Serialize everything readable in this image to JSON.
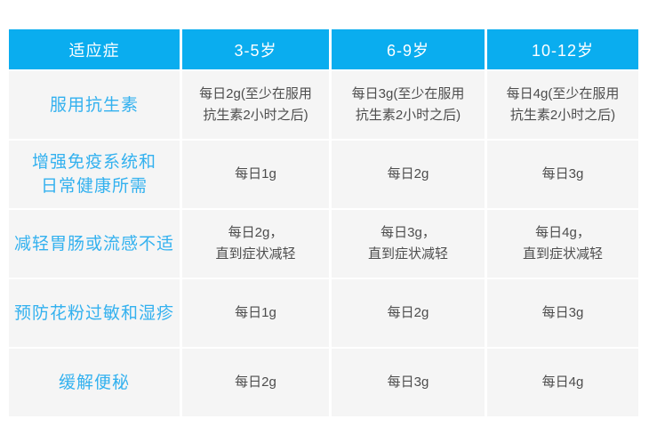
{
  "colors": {
    "header_bg": "#0AADEF",
    "header_text": "#FFFFFF",
    "label_text": "#33B1EF",
    "cell_bg": "#F5F5F5",
    "data_text": "#4D4D4D",
    "page_bg": "#FFFFFF"
  },
  "table": {
    "header": [
      "适应症",
      "3-5岁",
      "6-9岁",
      "10-12岁"
    ],
    "rows": [
      {
        "label": "服用抗生素",
        "values": [
          "每日2g(至少在服用\n抗生素2小时之后)",
          "每日3g(至少在服用\n抗生素2小时之后)",
          "每日4g(至少在服用\n抗生素2小时之后)"
        ]
      },
      {
        "label": "增强免疫系统和\n日常健康所需",
        "values": [
          "每日1g",
          "每日2g",
          "每日3g"
        ]
      },
      {
        "label": "减轻胃肠或流感不适",
        "values": [
          "每日2g，\n直到症状减轻",
          "每日3g，\n直到症状减轻",
          "每日4g，\n直到症状减轻"
        ]
      },
      {
        "label": "预防花粉过敏和湿疹",
        "values": [
          "每日1g",
          "每日2g",
          "每日3g"
        ]
      },
      {
        "label": "缓解便秘",
        "values": [
          "每日2g",
          "每日3g",
          "每日4g"
        ]
      }
    ]
  },
  "chart_data": {
    "type": "table",
    "title": "",
    "columns": [
      "适应症",
      "3-5岁",
      "6-9岁",
      "10-12岁"
    ],
    "rows": [
      [
        "服用抗生素",
        "每日2g(至少在服用抗生素2小时之后)",
        "每日3g(至少在服用抗生素2小时之后)",
        "每日4g(至少在服用抗生素2小时之后)"
      ],
      [
        "增强免疫系统和日常健康所需",
        "每日1g",
        "每日2g",
        "每日3g"
      ],
      [
        "减轻胃肠或流感不适",
        "每日2g，直到症状减轻",
        "每日3g，直到症状减轻",
        "每日4g，直到症状减轻"
      ],
      [
        "预防花粉过敏和湿疹",
        "每日1g",
        "每日2g",
        "每日3g"
      ],
      [
        "缓解便秘",
        "每日2g",
        "每日3g",
        "每日4g"
      ]
    ]
  }
}
